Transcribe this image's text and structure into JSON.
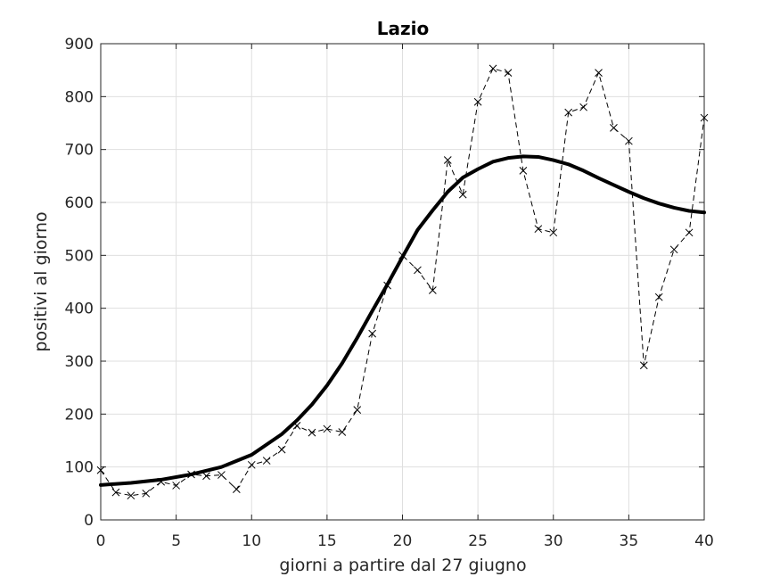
{
  "chart_data": {
    "type": "line",
    "title": "Lazio",
    "xlabel": "giorni a partire dal 27 giugno",
    "ylabel": "positivi al giorno",
    "xlim": [
      0,
      40
    ],
    "ylim": [
      0,
      900
    ],
    "xticks": [
      0,
      5,
      10,
      15,
      20,
      25,
      30,
      35,
      40
    ],
    "yticks": [
      0,
      100,
      200,
      300,
      400,
      500,
      600,
      700,
      800,
      900
    ],
    "grid": true,
    "legend": "none",
    "series": [
      {
        "style": "dashed-x-markers",
        "color": "#000000",
        "x": [
          0,
          1,
          2,
          3,
          4,
          5,
          6,
          7,
          8,
          9,
          10,
          11,
          12,
          13,
          14,
          15,
          16,
          17,
          18,
          19,
          20,
          21,
          22,
          23,
          24,
          25,
          26,
          27,
          28,
          29,
          30,
          31,
          32,
          33,
          34,
          35,
          36,
          37,
          38,
          39,
          40
        ],
        "y": [
          94,
          52,
          46,
          50,
          72,
          65,
          86,
          83,
          85,
          58,
          104,
          112,
          133,
          178,
          165,
          172,
          166,
          208,
          352,
          443,
          500,
          472,
          434,
          680,
          615,
          790,
          853,
          845,
          660,
          550,
          543,
          770,
          780,
          845,
          741,
          716,
          292,
          421,
          511,
          543,
          760
        ]
      },
      {
        "style": "solid-thick",
        "color": "#000000",
        "x": [
          0,
          2,
          4,
          6,
          8,
          10,
          12,
          13,
          14,
          15,
          16,
          17,
          18,
          19,
          20,
          21,
          22,
          23,
          24,
          25,
          26,
          27,
          28,
          29,
          30,
          31,
          32,
          33,
          34,
          35,
          36,
          37,
          38,
          39,
          40
        ],
        "y": [
          66,
          70,
          76,
          86,
          100,
          123,
          162,
          188,
          218,
          254,
          296,
          344,
          395,
          445,
          497,
          548,
          585,
          620,
          647,
          663,
          677,
          684,
          687,
          686,
          680,
          672,
          660,
          646,
          633,
          620,
          608,
          598,
          590,
          584,
          581
        ]
      }
    ]
  }
}
